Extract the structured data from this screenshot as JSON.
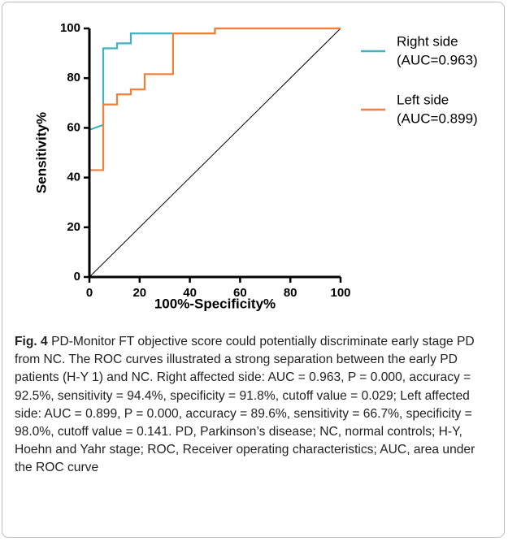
{
  "chart_data": {
    "type": "line",
    "xlabel": "100%-Specificity%",
    "ylabel": "Sensitivity%",
    "xlim": [
      0,
      100
    ],
    "ylim": [
      0,
      100
    ],
    "xticks": [
      0,
      20,
      40,
      60,
      80,
      100
    ],
    "yticks": [
      0,
      20,
      40,
      60,
      80,
      100
    ],
    "reference_line": true,
    "reference_color": "#000000",
    "series": [
      {
        "name": "Right side",
        "auc_label": "(AUC=0.963)",
        "color": "#41b3bf",
        "x": [
          0,
          0,
          5.5,
          5.5,
          11,
          11,
          16.5,
          16.5,
          50,
          50,
          100
        ],
        "values": [
          0,
          59.2,
          61.2,
          92,
          92,
          94,
          94,
          98,
          98,
          100,
          100
        ]
      },
      {
        "name": "Left side",
        "auc_label": "(AUC=0.899)",
        "color": "#f47f3a",
        "x": [
          0,
          0,
          5.5,
          5.5,
          11,
          11,
          16.5,
          16.5,
          22,
          22,
          33.3,
          33.3,
          50,
          50,
          100
        ],
        "values": [
          0,
          43,
          43,
          69.4,
          69.4,
          73.5,
          73.5,
          75.5,
          75.5,
          81.6,
          81.6,
          98,
          98,
          100,
          100
        ]
      }
    ]
  },
  "caption": {
    "label": "Fig. 4",
    "text": "PD-Monitor FT objective score could potentially discriminate early stage PD from NC. The ROC curves illustrated a strong separation between the early PD patients (H-Y 1) and NC. Right affected side: AUC = 0.963, P = 0.000, accuracy = 92.5%, sensitivity = 94.4%, specificity = 91.8%, cutoff value = 0.029; Left affected side: AUC = 0.899, P = 0.000, accuracy = 89.6%, sensitivity = 66.7%, specificity = 98.0%, cutoff value = 0.141. PD, Parkinson’s disease; NC, normal controls; H-Y, Hoehn and Yahr stage; ROC, Receiver operating characteristics; AUC, area under the ROC curve"
  }
}
